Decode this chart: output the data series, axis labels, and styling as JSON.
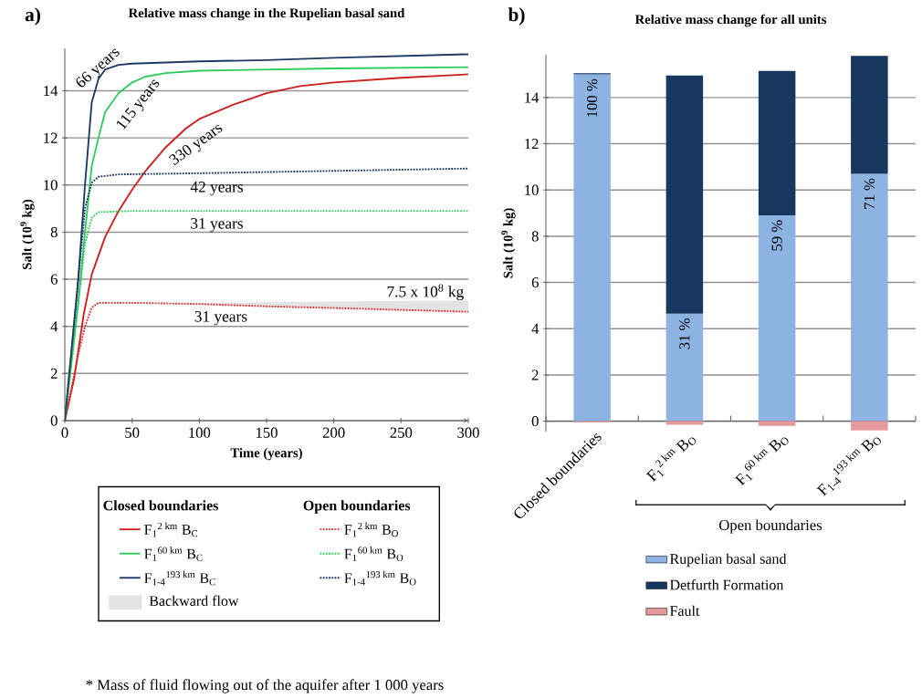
{
  "chart_data": [
    {
      "type": "line",
      "title": "Relative mass change in the Rupelian basal sand",
      "xlabel": "Time (years)",
      "ylabel": "Salt (10$^{9}$ kg)",
      "xlim": [
        0,
        300
      ],
      "xticks": [
        0,
        50,
        100,
        150,
        200,
        250,
        300
      ],
      "ylim": [
        0,
        15.8
      ],
      "yticks": [
        0,
        2,
        4,
        6,
        8,
        10,
        12,
        14
      ],
      "grid": "y",
      "legend": "bottom",
      "series": [
        {
          "name": "F$_{1}$$^{2 km}$ B$_{C}$",
          "color": "#cc1f1f",
          "line_style": "solid",
          "x": [
            0,
            7,
            14,
            20,
            30,
            40,
            50,
            60,
            75,
            90,
            100,
            125,
            150,
            175,
            200,
            250,
            300
          ],
          "values": [
            0,
            1.8,
            4.5,
            6.2,
            7.8,
            8.9,
            9.8,
            10.6,
            11.6,
            12.4,
            12.8,
            13.4,
            13.9,
            14.2,
            14.35,
            14.55,
            14.7
          ]
        },
        {
          "name": "F$_{1}$$^{60 km}$ B$_{C}$",
          "color": "#2ecc5e",
          "line_style": "solid",
          "x": [
            0,
            10,
            15,
            20,
            25,
            30,
            40,
            50,
            60,
            75,
            100,
            150,
            200,
            300
          ],
          "values": [
            0,
            5,
            8,
            10.8,
            12,
            13.1,
            13.9,
            14.35,
            14.6,
            14.75,
            14.85,
            14.9,
            14.95,
            15.0
          ]
        },
        {
          "name": "F$_{1-4}$$^{193 km}$ B$_{C}$",
          "color": "#1f3864",
          "line_style": "solid",
          "x": [
            0,
            10,
            15,
            20,
            25,
            30,
            40,
            50,
            100,
            150,
            200,
            300
          ],
          "values": [
            0,
            6,
            10,
            13.5,
            14.5,
            14.9,
            15.1,
            15.15,
            15.25,
            15.3,
            15.4,
            15.55
          ]
        },
        {
          "name": "F$_{1}$$^{2 km}$ B$_{O}$",
          "color": "#e03030",
          "line_style": "dotted",
          "x": [
            0,
            10,
            15,
            20,
            25,
            50,
            100,
            150,
            200,
            250,
            300
          ],
          "values": [
            0,
            2.8,
            4,
            4.8,
            5.0,
            5.0,
            4.95,
            4.85,
            4.78,
            4.7,
            4.62
          ],
          "lower": [
            null,
            null,
            null,
            null,
            null,
            null,
            4.95,
            4.85,
            4.78,
            4.7,
            4.62
          ],
          "upper": [
            null,
            null,
            null,
            null,
            null,
            null,
            5.0,
            5.02,
            5.05,
            5.08,
            5.1
          ]
        },
        {
          "name": "F$_{1}$$^{60 km}$ B$_{O}$",
          "color": "#2ecc5e",
          "line_style": "dotted",
          "x": [
            0,
            10,
            15,
            20,
            25,
            50,
            300
          ],
          "values": [
            0,
            5,
            7.5,
            8.6,
            8.85,
            8.9,
            8.9
          ]
        },
        {
          "name": "F$_{1-4}$$^{193 km}$ B$_{O}$",
          "color": "#1f3864",
          "line_style": "dotted",
          "x": [
            0,
            10,
            15,
            20,
            25,
            40,
            100,
            200,
            300
          ],
          "values": [
            0,
            6,
            9,
            10.1,
            10.35,
            10.45,
            10.5,
            10.6,
            10.7
          ]
        }
      ],
      "annotations": [
        "a)",
        "66 years",
        "115 years",
        "330 years",
        "42 years",
        "31 years",
        "31 years",
        "7.5 x 10$^{8}$ kg",
        "Closed boundaries",
        "Open boundaries",
        "Backward flow",
        "* Mass of fluid flowing out of the aquifer after 1 000 years"
      ]
    },
    {
      "type": "bar",
      "stacked": true,
      "title": "Relative mass change for all units",
      "ylabel": "Salt (10$^{9}$ kg)",
      "categories": [
        "Closed boundaries",
        "F$_{1}$$^{2 km}$ B$_{O}$",
        "F$_{1}$$^{60 km}$ B$_{O}$",
        "F$_{1-4}$$^{193 km}$ B$_{O}$"
      ],
      "ylim": [
        -0.45,
        15.85
      ],
      "yticks": [
        0,
        2,
        4,
        6,
        8,
        10,
        12,
        14
      ],
      "grid": "y",
      "legend": "bottom",
      "series": [
        {
          "name": "Rupelian basal sand",
          "color": "#8db3e2",
          "values": [
            15.0,
            4.65,
            8.9,
            10.7
          ]
        },
        {
          "name": "Detfurth Formation",
          "color": "#17375e",
          "values": [
            0.05,
            10.3,
            6.25,
            5.1
          ]
        },
        {
          "name": "Fault",
          "color": "#e6999a",
          "values": [
            -0.05,
            -0.15,
            -0.2,
            -0.4
          ]
        }
      ],
      "annotations": [
        "b)",
        "100 %",
        "31 %",
        "59 %",
        "71 %",
        "Open boundaries"
      ]
    }
  ]
}
